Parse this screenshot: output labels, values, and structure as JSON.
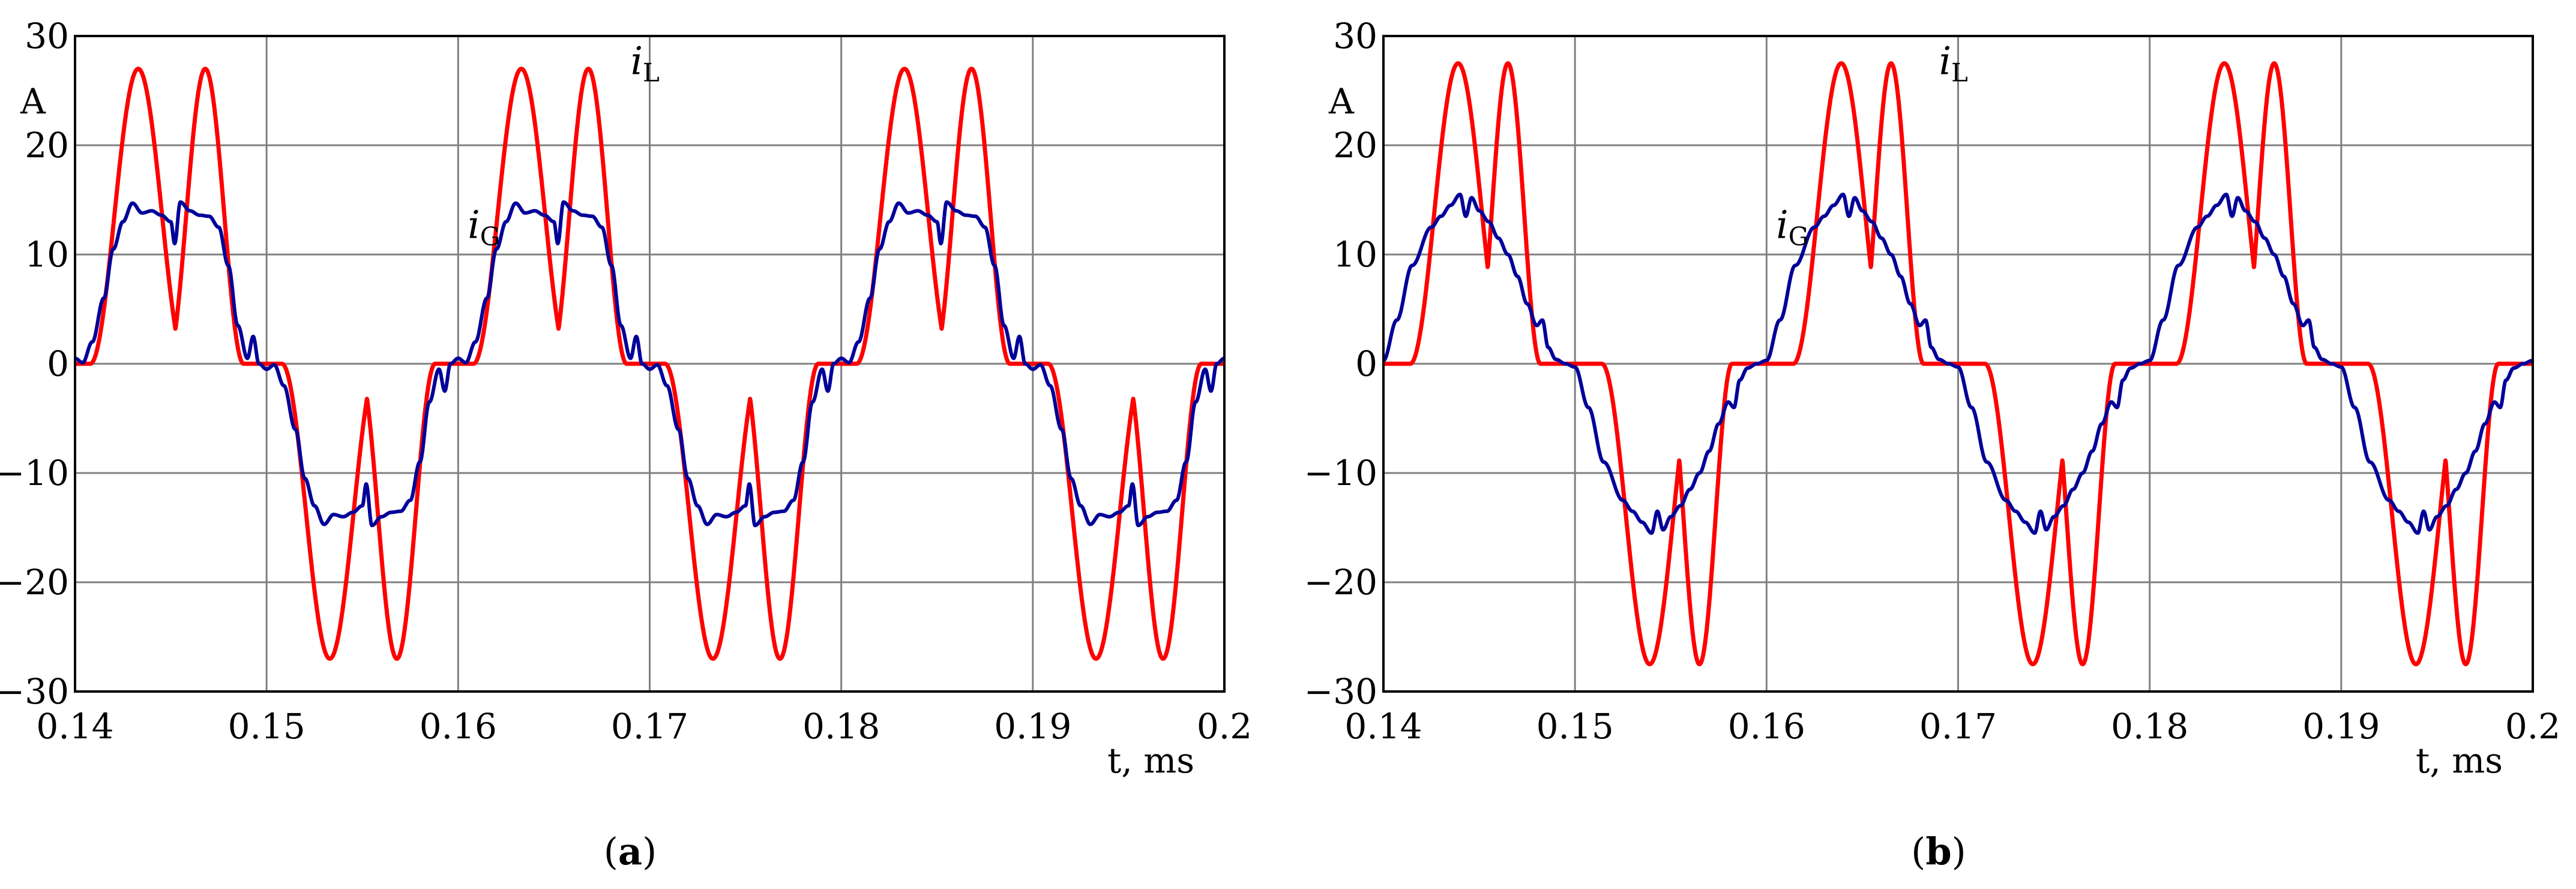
{
  "figure": {
    "captions": [
      "a",
      "b"
    ]
  },
  "colors": {
    "iL": "#ff0000",
    "iG": "#000099",
    "grid": "#808080",
    "axis": "#000000"
  },
  "chart_data": [
    {
      "type": "line",
      "panel": "a",
      "xlabel": "t, ms",
      "ylabel": "A",
      "xlim": [
        0.14,
        0.2
      ],
      "ylim": [
        -30,
        30
      ],
      "x_ticks": [
        "0.14",
        "0.15",
        "0.16",
        "0.17",
        "0.18",
        "0.19",
        "0.2"
      ],
      "y_ticks": [
        "30",
        "20",
        "10",
        "0",
        "−10",
        "−20",
        "−30"
      ],
      "grid": true,
      "period_ms": 0.02,
      "series": [
        {
          "name": "iL",
          "label_main": "i",
          "label_sub": "L",
          "label_at": {
            "t": 0.169,
            "i": 26.5
          },
          "color": "#ff0000",
          "description": "two sinusoidal humps per half-cycle, zero between, peaks 27 A",
          "hump_peak_A": 27,
          "positive_hump_intervals_in_period": [
            [
              0.0008,
              0.0058
            ],
            [
              0.0048,
              0.0088
            ]
          ],
          "t_shift": 0.14
        },
        {
          "name": "iG",
          "label_main": "i",
          "label_sub": "G",
          "label_at": {
            "t": 0.1605,
            "i": 11.5
          },
          "color": "#000099",
          "description": "smoothed grid current, flat top with ripple, peak ~15 A",
          "points_one_period": [
            [
              0.0,
              0.5
            ],
            [
              0.0004,
              0.1
            ],
            [
              0.0009,
              2.0
            ],
            [
              0.0015,
              6.0
            ],
            [
              0.002,
              10.5
            ],
            [
              0.0025,
              13.0
            ],
            [
              0.003,
              14.7
            ],
            [
              0.0035,
              13.8
            ],
            [
              0.004,
              14.0
            ],
            [
              0.0045,
              13.6
            ],
            [
              0.005,
              13.0
            ],
            [
              0.0052,
              11.0
            ],
            [
              0.0055,
              14.8
            ],
            [
              0.006,
              14.0
            ],
            [
              0.0065,
              13.6
            ],
            [
              0.007,
              13.5
            ],
            [
              0.0075,
              12.5
            ],
            [
              0.008,
              9.0
            ],
            [
              0.0085,
              3.5
            ],
            [
              0.009,
              0.5
            ],
            [
              0.0093,
              2.5
            ],
            [
              0.0096,
              0.0
            ],
            [
              0.01,
              -0.5
            ],
            [
              0.0104,
              -0.1
            ],
            [
              0.0109,
              -2.0
            ],
            [
              0.0115,
              -6.0
            ],
            [
              0.012,
              -10.5
            ],
            [
              0.0125,
              -13.0
            ],
            [
              0.013,
              -14.7
            ],
            [
              0.0135,
              -13.8
            ],
            [
              0.014,
              -14.0
            ],
            [
              0.0145,
              -13.6
            ],
            [
              0.015,
              -13.0
            ],
            [
              0.0152,
              -11.0
            ],
            [
              0.0155,
              -14.8
            ],
            [
              0.016,
              -14.0
            ],
            [
              0.0165,
              -13.6
            ],
            [
              0.017,
              -13.5
            ],
            [
              0.0175,
              -12.5
            ],
            [
              0.018,
              -9.0
            ],
            [
              0.0185,
              -3.5
            ],
            [
              0.019,
              -0.5
            ],
            [
              0.0193,
              -2.5
            ],
            [
              0.0196,
              0.0
            ],
            [
              0.02,
              0.5
            ]
          ],
          "t_shift": 0.14
        }
      ]
    },
    {
      "type": "line",
      "panel": "b",
      "xlabel": "t, ms",
      "ylabel": "A",
      "xlim": [
        0.14,
        0.2
      ],
      "ylim": [
        -30,
        30
      ],
      "x_ticks": [
        "0.14",
        "0.15",
        "0.16",
        "0.17",
        "0.18",
        "0.19",
        "0.2"
      ],
      "y_ticks": [
        "30",
        "20",
        "10",
        "0",
        "−10",
        "−20",
        "−30"
      ],
      "grid": true,
      "period_ms": 0.02,
      "series": [
        {
          "name": "iL",
          "label_main": "i",
          "label_sub": "L",
          "label_at": {
            "t": 0.169,
            "i": 26.5
          },
          "color": "#ff0000",
          "description": "two sinusoidal humps per half-cycle, zero between, peaks 27.5 A",
          "hump_peak_A": 27.5,
          "positive_hump_intervals_in_period": [
            [
              0.0014,
              0.0064
            ],
            [
              0.0048,
              0.0082
            ]
          ],
          "t_shift": 0.14
        },
        {
          "name": "iG",
          "label_main": "i",
          "label_sub": "G",
          "label_at": {
            "t": 0.1605,
            "i": 11.5
          },
          "color": "#000099",
          "description": "smoothed grid current, rising ramp with ripple at peak ~16 A",
          "points_one_period": [
            [
              0.0,
              0.3
            ],
            [
              0.0007,
              4.0
            ],
            [
              0.0015,
              9.0
            ],
            [
              0.0025,
              12.5
            ],
            [
              0.003,
              13.5
            ],
            [
              0.0035,
              14.5
            ],
            [
              0.004,
              15.5
            ],
            [
              0.0043,
              13.5
            ],
            [
              0.0046,
              15.2
            ],
            [
              0.005,
              14.0
            ],
            [
              0.0055,
              13.0
            ],
            [
              0.006,
              11.5
            ],
            [
              0.0065,
              10.0
            ],
            [
              0.007,
              8.0
            ],
            [
              0.0075,
              5.5
            ],
            [
              0.008,
              3.5
            ],
            [
              0.0083,
              4.0
            ],
            [
              0.0086,
              1.5
            ],
            [
              0.009,
              0.4
            ],
            [
              0.0095,
              0.0
            ],
            [
              0.01,
              -0.3
            ],
            [
              0.0107,
              -4.0
            ],
            [
              0.0115,
              -9.0
            ],
            [
              0.0125,
              -12.5
            ],
            [
              0.013,
              -13.5
            ],
            [
              0.0135,
              -14.5
            ],
            [
              0.014,
              -15.5
            ],
            [
              0.0143,
              -13.5
            ],
            [
              0.0146,
              -15.2
            ],
            [
              0.015,
              -14.0
            ],
            [
              0.0155,
              -13.0
            ],
            [
              0.016,
              -11.5
            ],
            [
              0.0165,
              -10.0
            ],
            [
              0.017,
              -8.0
            ],
            [
              0.0175,
              -5.5
            ],
            [
              0.018,
              -3.5
            ],
            [
              0.0183,
              -4.0
            ],
            [
              0.0186,
              -1.5
            ],
            [
              0.019,
              -0.4
            ],
            [
              0.0195,
              0.0
            ],
            [
              0.02,
              0.3
            ]
          ],
          "t_shift": 0.14
        }
      ]
    }
  ]
}
